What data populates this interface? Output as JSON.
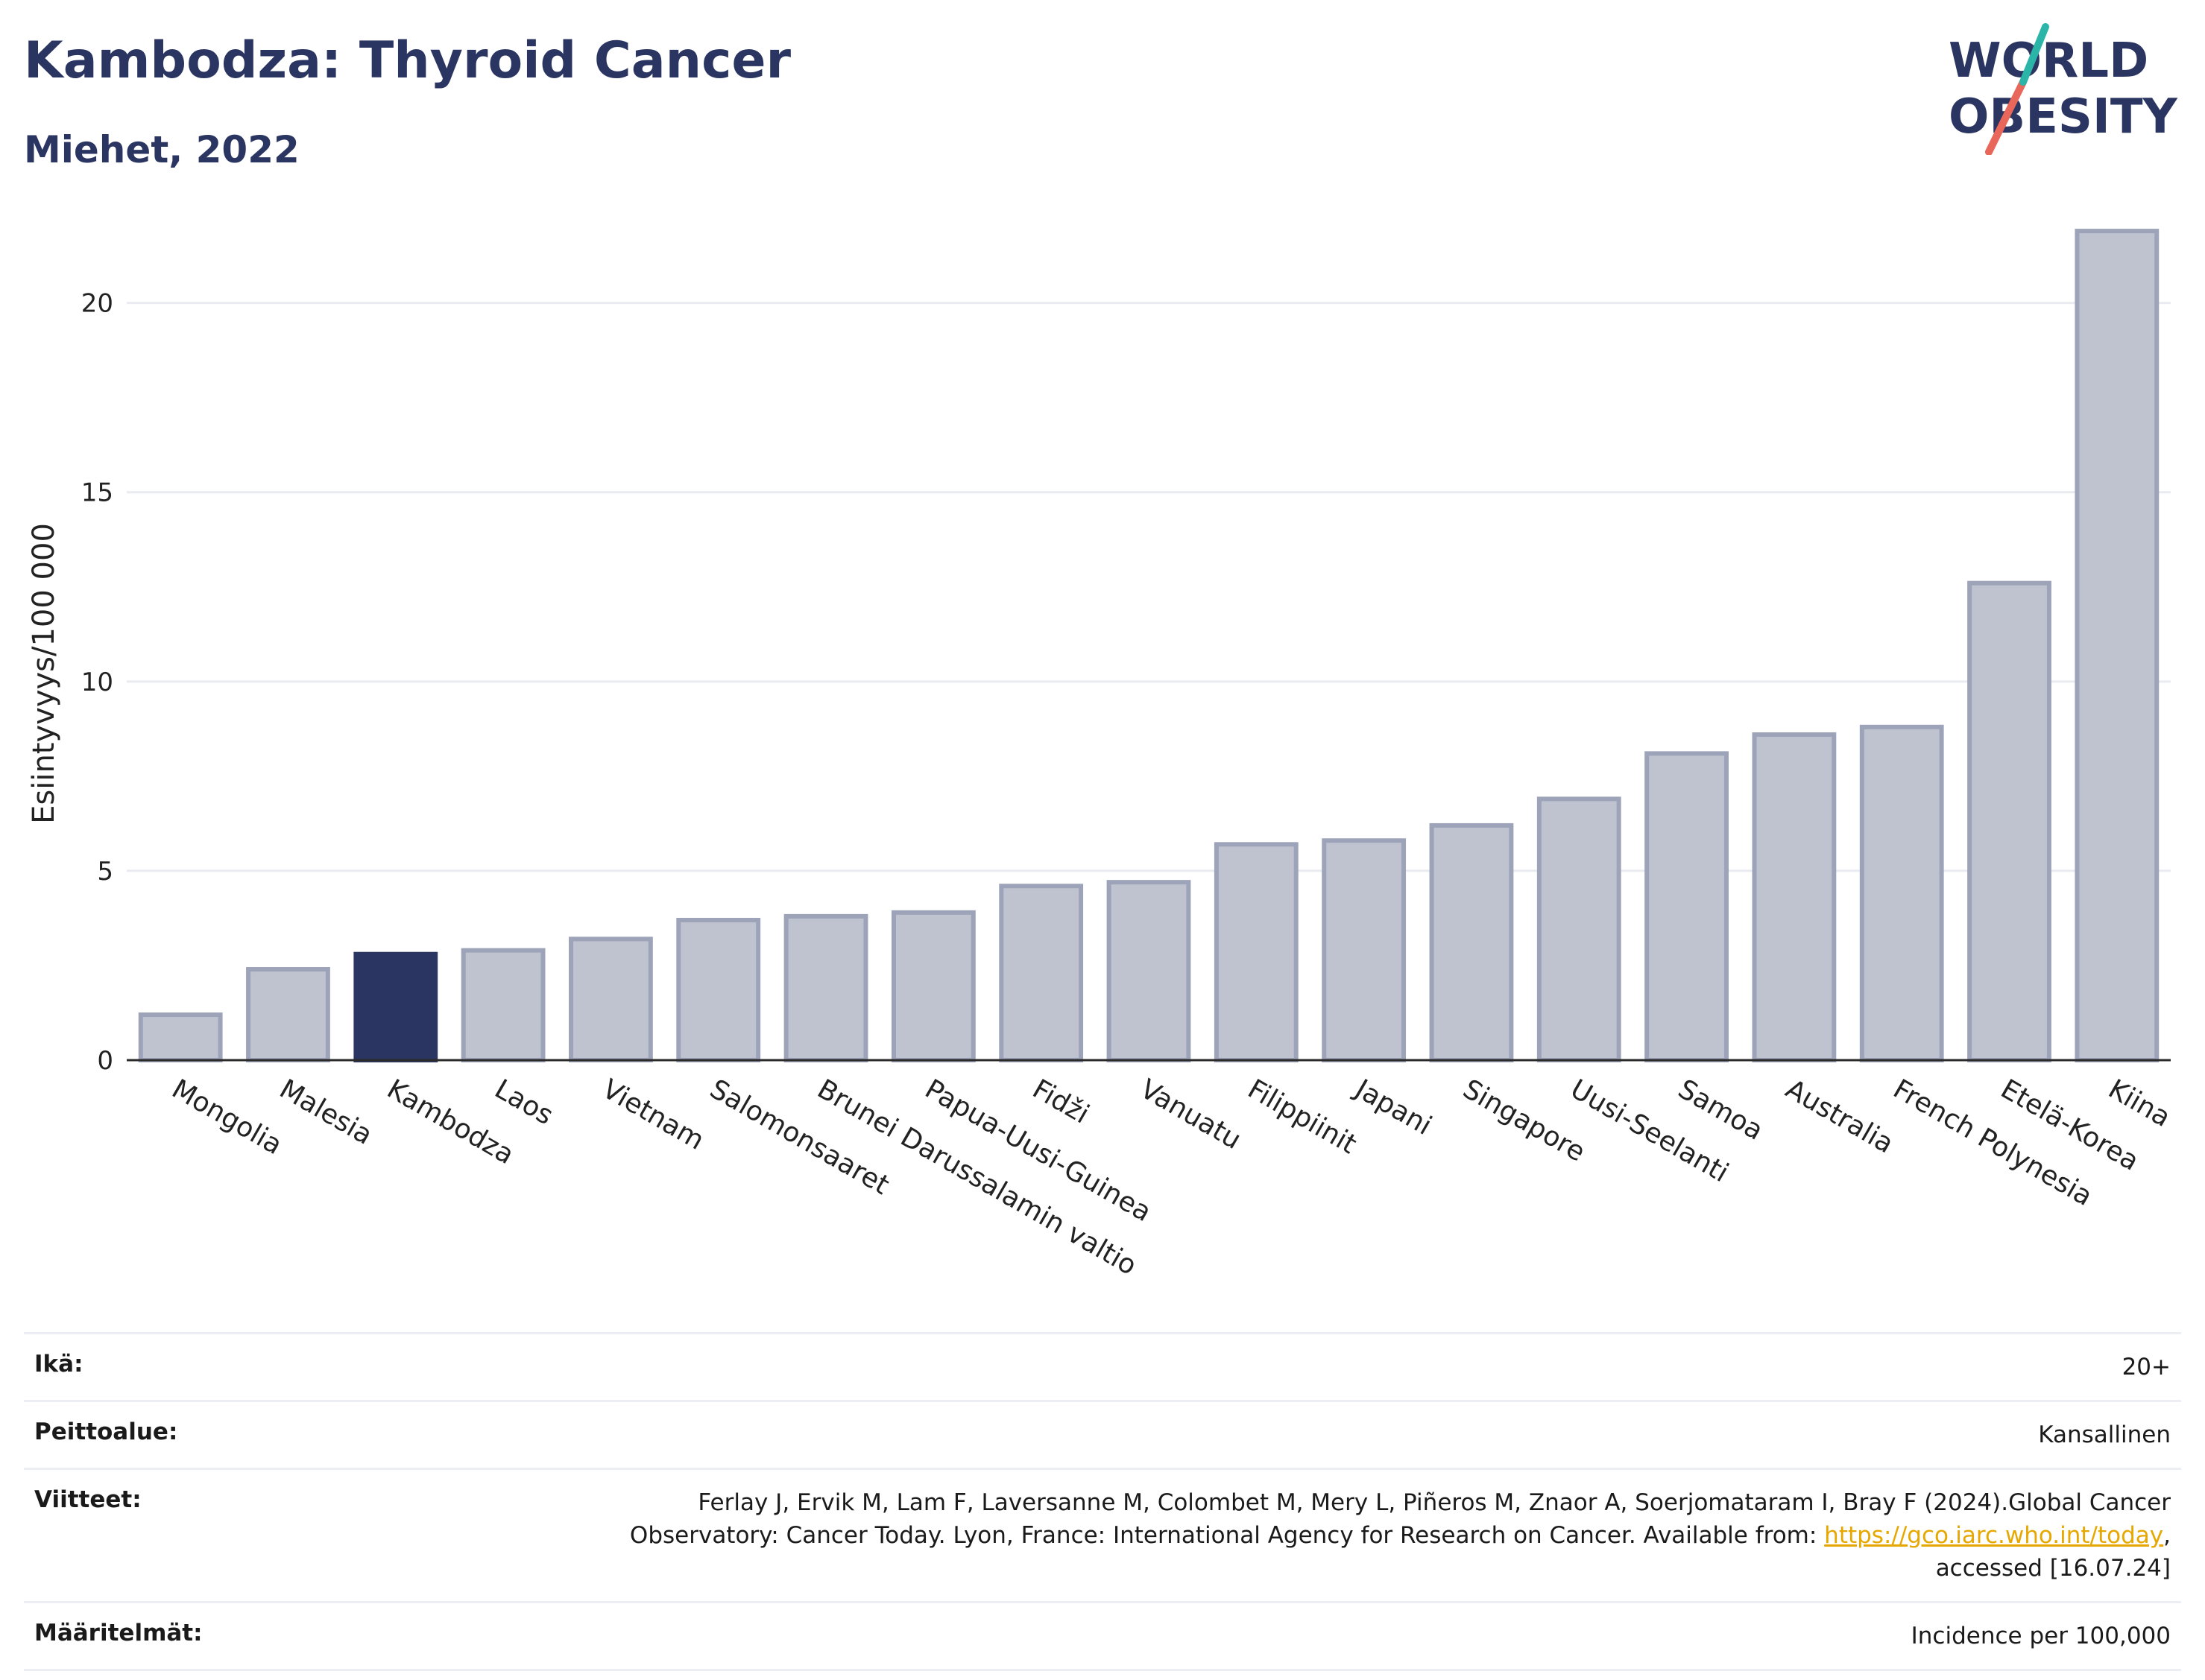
{
  "header": {
    "title": "Kambodza: Thyroid Cancer",
    "subtitle": "Miehet, 2022"
  },
  "logo": {
    "line1": "WORLD",
    "line2": "OBESITY",
    "brand_color": "#2b3561",
    "accent_teal": "#2bb5a8",
    "accent_red": "#e8675a"
  },
  "colors": {
    "highlight": "#2b3561",
    "bar": "#bfc3d0",
    "bar_stroke": "#9da3b8",
    "grid": "#e9ebf0"
  },
  "chart_data": {
    "type": "bar",
    "ylabel": "Esiintyvyys/100 000",
    "ylim": [
      0,
      22
    ],
    "yticks": [
      0,
      5,
      10,
      15,
      20
    ],
    "grid": true,
    "highlight": "Kambodza",
    "categories": [
      "Mongolia",
      "Malesia",
      "Kambodza",
      "Laos",
      "Vietnam",
      "Salomonsaaret",
      "Brunei Darussalamin valtio",
      "Papua-Uusi-Guinea",
      "Fidži",
      "Vanuatu",
      "Filippiinit",
      "Japani",
      "Singapore",
      "Uusi-Seelanti",
      "Samoa",
      "Australia",
      "French Polynesia",
      "Etelä-Korea",
      "Kiina"
    ],
    "values": [
      1.2,
      2.4,
      2.8,
      2.9,
      3.2,
      3.7,
      3.8,
      3.9,
      4.6,
      4.7,
      5.7,
      5.8,
      6.2,
      6.9,
      8.1,
      8.6,
      8.8,
      12.6,
      21.9
    ]
  },
  "meta": {
    "age_label": "Ikä:",
    "age_value": "20+",
    "coverage_label": "Peittoalue:",
    "coverage_value": "Kansallinen",
    "refs_label": "Viitteet:",
    "refs_text1": "Ferlay J, Ervik M, Lam F, Laversanne M, Colombet M, Mery L, Piñeros M, Znaor A, Soerjomataram I, Bray F (2024).Global Cancer",
    "refs_text2": "Observatory: Cancer Today. Lyon, France: International Agency for Research on Cancer. Available from: ",
    "refs_link": "https://gco.iarc.who.int/today",
    "refs_text3": ",",
    "refs_text4": "accessed [16.07.24]",
    "defs_label": "Määritelmät:",
    "defs_value": "Incidence per 100,000"
  }
}
